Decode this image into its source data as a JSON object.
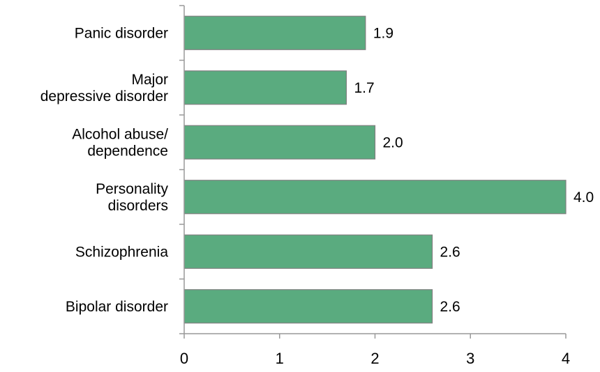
{
  "chart_data": {
    "type": "bar",
    "orientation": "horizontal",
    "title": "",
    "xlabel": "",
    "ylabel": "",
    "categories": [
      [
        "Panic disorder"
      ],
      [
        "Major",
        "depressive disorder"
      ],
      [
        "Alcohol abuse/",
        "dependence"
      ],
      [
        "Personality",
        "disorders"
      ],
      [
        "Schizophrenia"
      ],
      [
        "Bipolar disorder"
      ]
    ],
    "values": [
      1.9,
      1.7,
      2.0,
      4.0,
      2.6,
      2.6
    ],
    "value_labels": [
      "1.9",
      "1.7",
      "2.0",
      "4.0",
      "2.6",
      "2.6"
    ],
    "xlim": [
      0,
      4
    ],
    "x_ticks": [
      0,
      1,
      2,
      3,
      4
    ],
    "x_tick_labels": [
      "0",
      "1",
      "2",
      "3",
      "4"
    ],
    "grid": false,
    "legend": "none",
    "colors": {
      "bar_fill": "#5aab7f",
      "bar_stroke": "#7f7f7f",
      "axis": "#999999",
      "text": "#000000"
    }
  }
}
